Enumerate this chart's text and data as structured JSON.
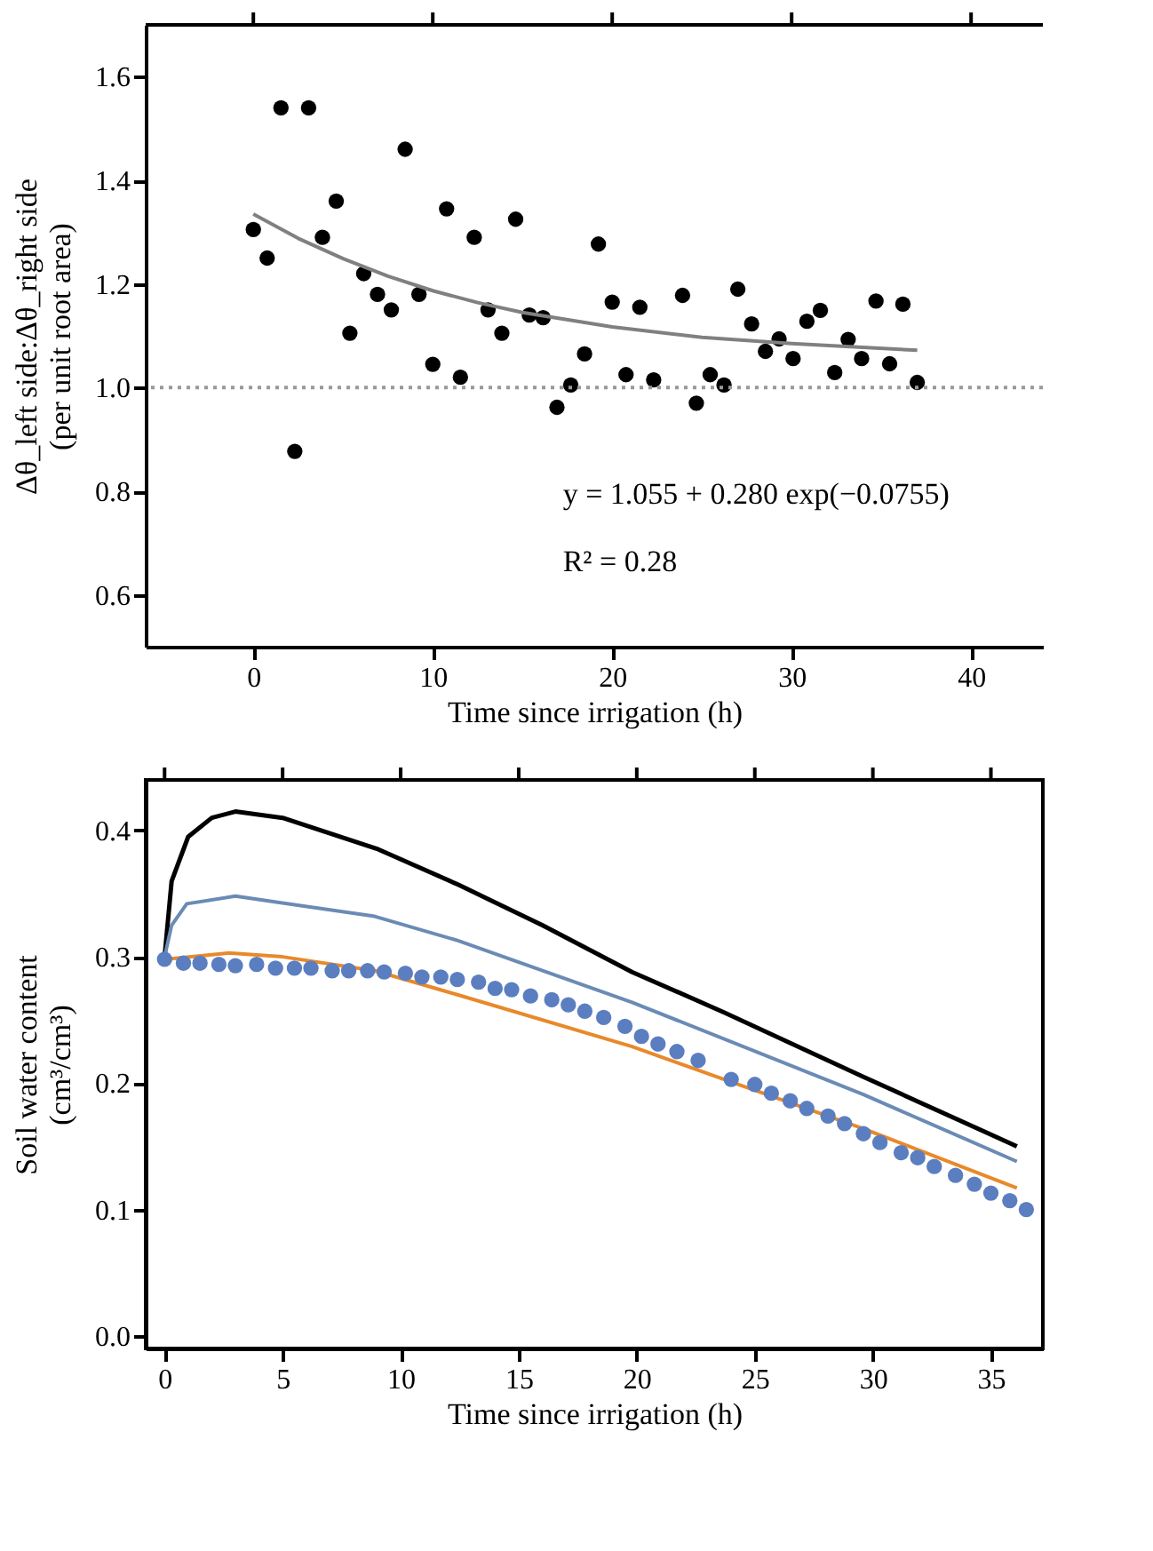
{
  "chart_data": [
    {
      "type": "scatter",
      "xlabel": "Time since irrigation (h)",
      "ylabel": "Δθ_left side:Δθ_right side\n(per unit root area)",
      "xlim": [
        -6,
        44
      ],
      "ylim": [
        0.5,
        1.7
      ],
      "xticks": [
        0,
        10,
        20,
        30,
        40
      ],
      "yticks": [
        0.6,
        0.8,
        {
          "value": 1,
          "label": "1.0"
        },
        1.2,
        1.4,
        1.6
      ],
      "grid": false,
      "series": [
        {
          "color": "#000000",
          "marker": "circle",
          "x": [
            0,
            0.77,
            1.54,
            2.31,
            3.08,
            3.85,
            4.62,
            5.38,
            6.15,
            6.92,
            7.69,
            8.46,
            9.23,
            10.0,
            10.77,
            11.54,
            12.31,
            13.08,
            13.85,
            14.62,
            15.38,
            16.15,
            16.92,
            17.69,
            18.46,
            19.23,
            20.0,
            20.77,
            21.54,
            22.31,
            23.92,
            24.69,
            25.46,
            26.23,
            27.0,
            27.77,
            28.54,
            29.3,
            30.08,
            30.85,
            31.6,
            32.4,
            33.15,
            33.9,
            34.7,
            35.46,
            36.2,
            37.0
          ],
          "values": [
            1.305,
            1.25,
            1.54,
            0.877,
            1.54,
            1.29,
            1.36,
            1.105,
            1.22,
            1.18,
            1.15,
            1.46,
            1.18,
            1.045,
            1.345,
            1.02,
            1.29,
            1.15,
            1.105,
            1.325,
            1.14,
            1.135,
            0.962,
            1.005,
            1.065,
            1.277,
            1.165,
            1.025,
            1.155,
            1.015,
            1.178,
            0.97,
            1.025,
            1.005,
            1.19,
            1.123,
            1.07,
            1.094,
            1.056,
            1.128,
            1.149,
            1.029,
            1.093,
            1.056,
            1.167,
            1.046,
            1.161,
            1.01
          ]
        },
        {
          "type": "line",
          "color": "#808080",
          "x": [
            0,
            2.5,
            5,
            7.5,
            10,
            12.5,
            15,
            20,
            25,
            30,
            37
          ],
          "values": [
            1.335,
            1.288,
            1.249,
            1.215,
            1.187,
            1.164,
            1.145,
            1.117,
            1.097,
            1.085,
            1.072
          ]
        }
      ],
      "ref_lines": [
        {
          "axis": "y",
          "value": 1.0,
          "color": "#999999",
          "line_style": "dotted"
        }
      ],
      "annotations": [
        "y = 1.055 + 0.280 exp(−0.0755)",
        "R² = 0.28"
      ]
    },
    {
      "type": "line",
      "xlabel": "Time since irrigation (h)",
      "ylabel": "Soil water content\n(cm³/cm³)",
      "xlim": [
        -0.8,
        37.2
      ],
      "ylim": [
        -0.01,
        0.44
      ],
      "xticks": [
        0,
        5,
        10,
        15,
        20,
        25,
        30,
        35
      ],
      "yticks": [
        {
          "value": 0,
          "label": "0.0"
        },
        0.1,
        0.2,
        0.3,
        0.4
      ],
      "grid": false,
      "series": [
        {
          "color": "#000000",
          "x": [
            0,
            0.3,
            1,
            2,
            3,
            5,
            9.06,
            12.45,
            16,
            19.8,
            23.7,
            29.6,
            36.1
          ],
          "values": [
            0.3,
            0.36,
            0.395,
            0.41,
            0.415,
            0.41,
            0.385,
            0.357,
            0.325,
            0.288,
            0.256,
            0.205,
            0.15
          ]
        },
        {
          "color": "#6a8bb5",
          "x": [
            0,
            0.3,
            0.94,
            3,
            8.9,
            12.4,
            19.8,
            29.6,
            36.1
          ],
          "values": [
            0.3,
            0.325,
            0.342,
            0.348,
            0.332,
            0.313,
            0.264,
            0.191,
            0.138
          ]
        },
        {
          "color": "#e8892a",
          "x": [
            0,
            2.7,
            5,
            8.9,
            12.4,
            19.8,
            23.7,
            29.6,
            36.1
          ],
          "values": [
            0.298,
            0.303,
            0.3,
            0.289,
            0.27,
            0.229,
            0.203,
            0.164,
            0.117
          ]
        },
        {
          "type": "scatter",
          "color": "#5b7ec0",
          "marker": "circle",
          "x": [
            0,
            0.8,
            1.5,
            2.3,
            3.0,
            3.9,
            4.7,
            5.5,
            6.2,
            7.1,
            7.8,
            8.6,
            9.3,
            10.2,
            10.9,
            11.7,
            12.4,
            13.3,
            14.0,
            14.7,
            15.5,
            16.4,
            17.1,
            17.8,
            18.6,
            19.5,
            20.2,
            20.9,
            21.7,
            22.6,
            24.0,
            25.0,
            25.7,
            26.5,
            27.2,
            28.1,
            28.8,
            29.6,
            30.3,
            31.2,
            31.9,
            32.6,
            33.5,
            34.3,
            35.0,
            35.8,
            36.5
          ],
          "values": [
            0.298,
            0.295,
            0.295,
            0.294,
            0.293,
            0.294,
            0.291,
            0.291,
            0.291,
            0.289,
            0.289,
            0.289,
            0.288,
            0.287,
            0.284,
            0.284,
            0.282,
            0.28,
            0.275,
            0.274,
            0.269,
            0.266,
            0.262,
            0.257,
            0.252,
            0.245,
            0.237,
            0.231,
            0.225,
            0.218,
            0.203,
            0.199,
            0.192,
            0.186,
            0.18,
            0.174,
            0.168,
            0.16,
            0.153,
            0.145,
            0.141,
            0.134,
            0.127,
            0.12,
            0.113,
            0.107,
            0.1
          ]
        }
      ]
    }
  ]
}
